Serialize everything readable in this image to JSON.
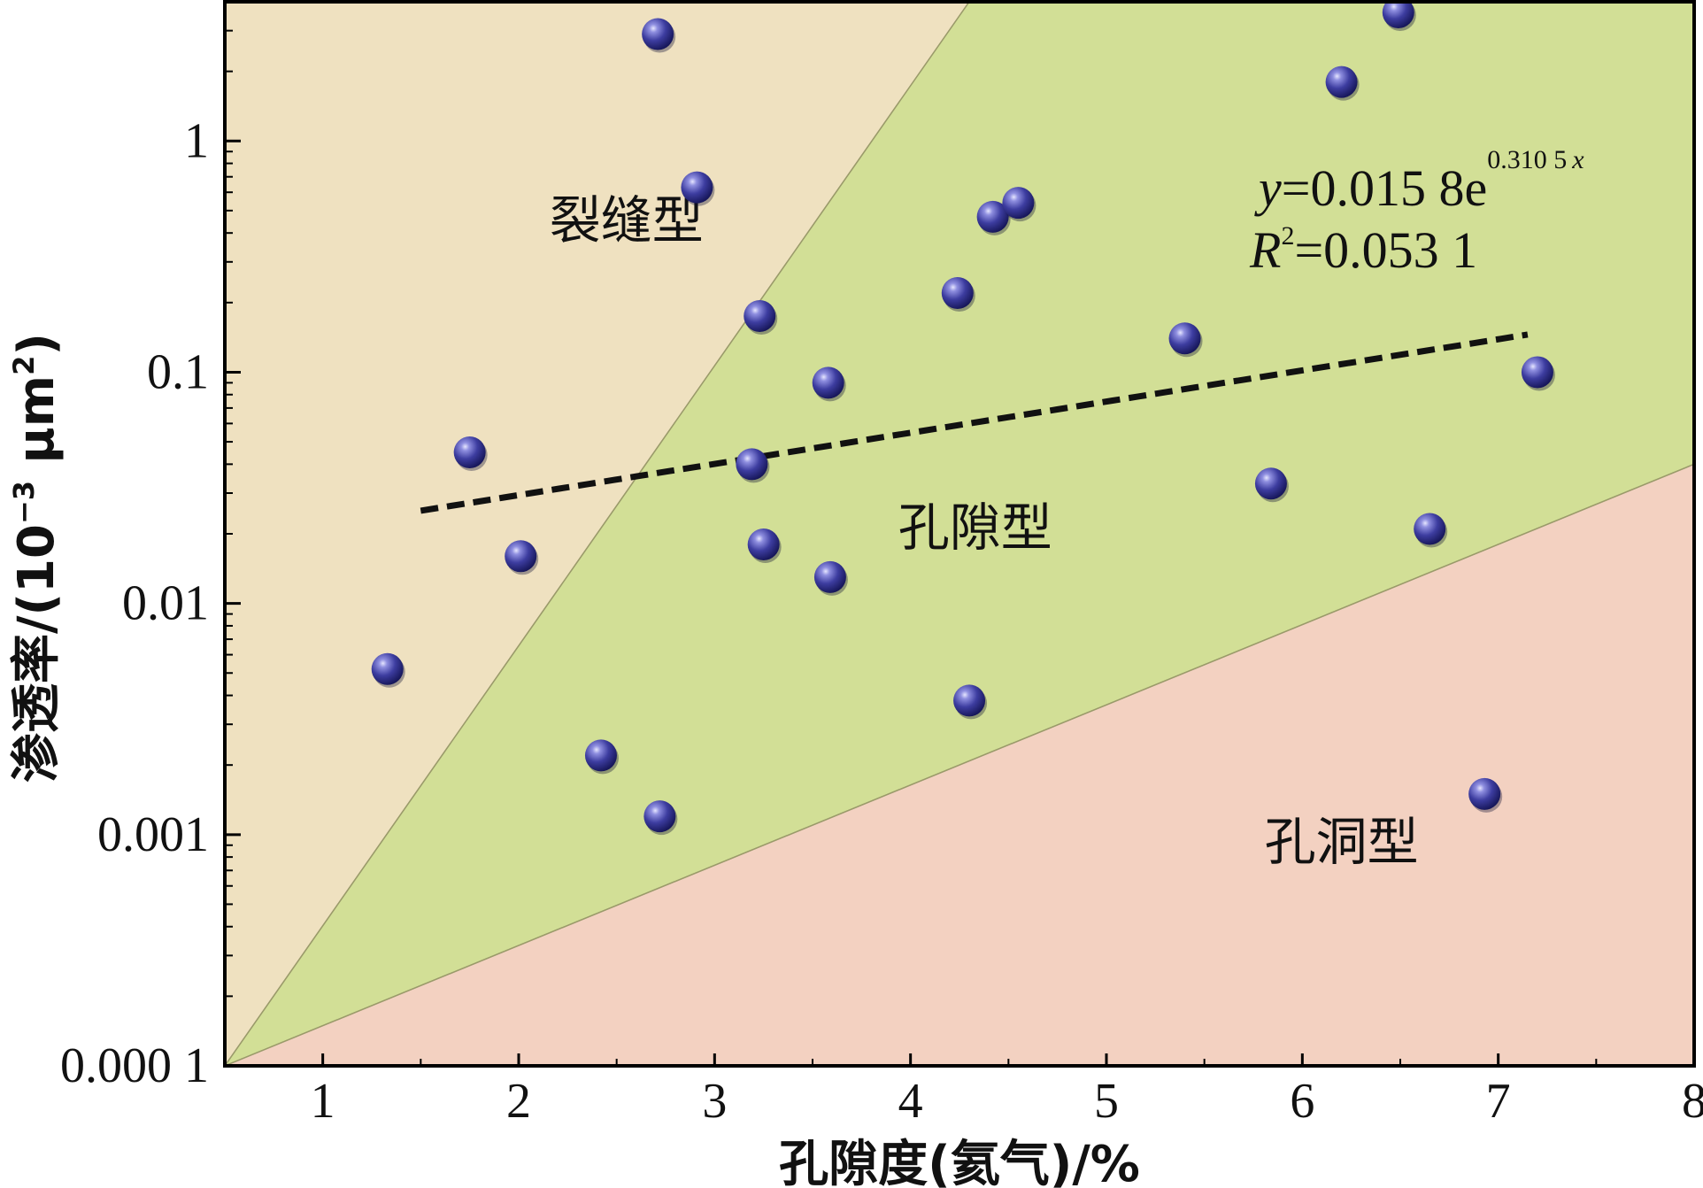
{
  "chart_data": {
    "type": "scatter",
    "x_axis": {
      "label": "孔隙度(氦气)/%",
      "range": [
        0.5,
        8
      ],
      "ticks": [
        1,
        2,
        3,
        4,
        5,
        6,
        7,
        8
      ],
      "tick_labels": [
        "1",
        "2",
        "3",
        "4",
        "5",
        "6",
        "7",
        "8"
      ]
    },
    "y_axis": {
      "label_main": "渗透率/(10",
      "label_exp": "−3",
      "label_unit": " μm",
      "label_unit_exp": "2",
      "label_close": ")",
      "scale": "log",
      "range": [
        0.0001,
        4
      ],
      "ticks": [
        0.0001,
        0.001,
        0.01,
        0.1,
        1
      ],
      "tick_labels": [
        "0.000 1",
        "0.001",
        "0.01",
        "0.1",
        "1"
      ]
    },
    "regions": [
      {
        "name": "裂缝型",
        "color": "#efe1c0",
        "polygon": [
          [
            0.5,
            0.0001
          ],
          [
            0.5,
            4
          ],
          [
            4.3,
            4
          ]
        ]
      },
      {
        "name": "孔隙型",
        "color": "#d2df96",
        "polygon": [
          [
            0.5,
            0.0001
          ],
          [
            4.3,
            4
          ],
          [
            8,
            4
          ],
          [
            8,
            0.04
          ]
        ]
      },
      {
        "name": "孔洞型",
        "color": "#f3d1c1",
        "polygon": [
          [
            0.5,
            0.0001
          ],
          [
            8,
            0.04
          ],
          [
            8,
            0.0001
          ]
        ]
      }
    ],
    "region_labels": [
      {
        "text": "裂缝型",
        "x": 2.55,
        "y": 0.38
      },
      {
        "text": "孔隙型",
        "x": 4.33,
        "y": 0.0178
      },
      {
        "text": "孔洞型",
        "x": 6.2,
        "y": 0.00078
      }
    ],
    "series": [
      {
        "marker": "sphere",
        "color": "#3a3a96",
        "x": [
          1.33,
          1.75,
          2.01,
          2.42,
          2.72,
          2.71,
          2.91,
          3.19,
          3.23,
          3.25,
          3.58,
          3.59,
          4.24,
          4.3,
          4.42,
          4.55,
          5.4,
          5.84,
          6.2,
          6.49,
          6.65,
          6.93,
          7.2
        ],
        "y": [
          0.0052,
          0.045,
          0.016,
          0.0022,
          0.0012,
          2.9,
          0.63,
          0.04,
          0.175,
          0.018,
          0.09,
          0.013,
          0.22,
          0.0038,
          0.47,
          0.54,
          0.14,
          0.033,
          1.8,
          3.6,
          0.021,
          0.0015,
          0.1
        ]
      }
    ],
    "trendline": {
      "style": "dashed",
      "color": "#111111",
      "model": "exponential",
      "a": 0.0158,
      "b": 0.3105,
      "x_range": [
        1.5,
        7.15
      ]
    },
    "equation": {
      "line1_var": "y",
      "line1_text": "=0.015 8e",
      "line1_sup": "0.310 5",
      "line1_sup_var": "x",
      "line2_var": "R",
      "line2_sup": "2",
      "line2_text": "=0.053 1"
    }
  }
}
